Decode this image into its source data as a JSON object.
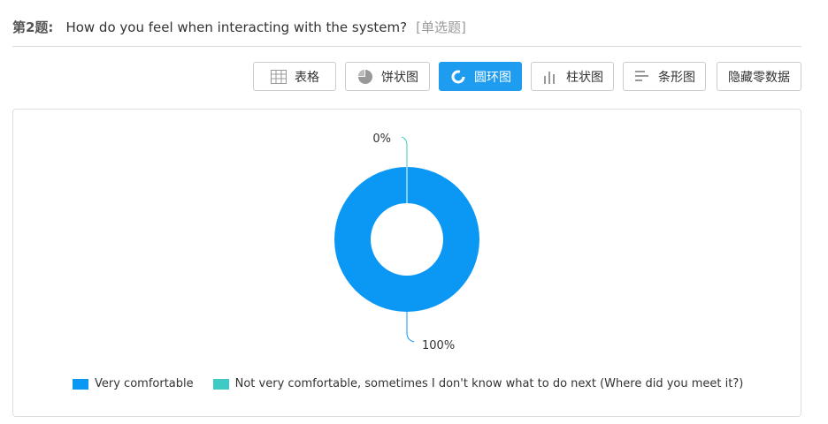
{
  "question": {
    "number": "第2题:",
    "text": "How do you feel when interacting with the system?",
    "type_tag": "[单选题]"
  },
  "toolbar": {
    "buttons": [
      {
        "label": "表格",
        "icon": "table-icon",
        "active": false
      },
      {
        "label": "饼状图",
        "icon": "pie-chart-icon",
        "active": false
      },
      {
        "label": "圆环图",
        "icon": "donut-chart-icon",
        "active": true
      },
      {
        "label": "柱状图",
        "icon": "bar-chart-icon",
        "active": false
      },
      {
        "label": "条形图",
        "icon": "horizontal-bar-chart-icon",
        "active": false
      },
      {
        "label": "隐藏零数据",
        "icon": "",
        "active": false
      }
    ]
  },
  "chart_data": {
    "type": "pie",
    "variant": "donut",
    "slices": [
      {
        "name": "Very comfortable",
        "value": 100,
        "label": "100%",
        "color": "#0b98f5"
      },
      {
        "name": "Not very comfortable, sometimes I don't know what to do next (Where did you meet it?)",
        "value": 0,
        "label": "0%",
        "color": "#3ecbc5"
      }
    ],
    "legend_position": "bottom-left"
  }
}
